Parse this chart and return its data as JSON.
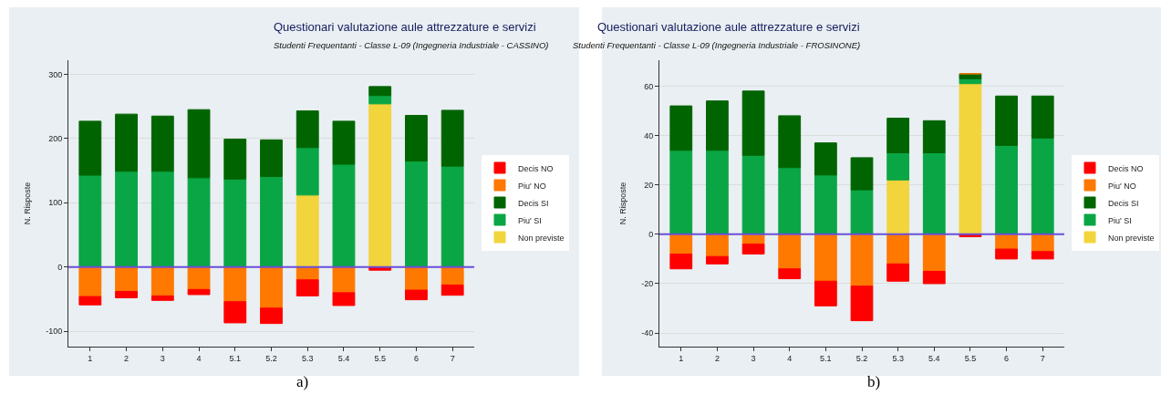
{
  "chart_data": [
    {
      "type": "bar",
      "title": "Questionari valutazione aule attrezzature e servizi",
      "subtitle": "Studenti Frequentanti - Classe L-09 (Ingegneria Industriale - CASSINO)",
      "ylabel": "N. Risposte",
      "annotations": [
        "a)"
      ],
      "categories": [
        "1",
        "2",
        "3",
        "4",
        "5.1",
        "5.2",
        "5.3",
        "5.4",
        "5.5",
        "6",
        "7"
      ],
      "stacked": true,
      "ylim": [
        -124,
        322
      ],
      "yticks": [
        -100,
        0,
        100,
        200,
        300
      ],
      "grid": "y",
      "legend": "right",
      "ref_lines": [
        {
          "axis": "y",
          "value": 0,
          "color": "#6a4fd8"
        }
      ],
      "series": [
        {
          "name": "Non previste",
          "color": "#f2d43c",
          "values": [
            null,
            null,
            null,
            null,
            null,
            null,
            112,
            null,
            254,
            null,
            null
          ]
        },
        {
          "name": "Piu' SI",
          "color": "#0aa645",
          "values": [
            143,
            149,
            149,
            139,
            137,
            141,
            74,
            160,
            13,
            165,
            157
          ]
        },
        {
          "name": "Decis SI",
          "color": "#006400",
          "values": [
            84,
            89,
            86,
            106,
            62,
            57,
            57,
            67,
            14,
            71,
            87
          ]
        },
        {
          "name": "Piu' NO",
          "color": "#ff7800",
          "values": [
            -46,
            -38,
            -45,
            -35,
            -54,
            -64,
            -20,
            -40,
            null,
            -36,
            -28
          ]
        },
        {
          "name": "Decis NO",
          "color": "#ff0000",
          "values": [
            -13,
            -10,
            -7,
            -8,
            -33,
            -24,
            -25,
            -20,
            -5,
            -15,
            -16
          ]
        }
      ]
    },
    {
      "type": "bar",
      "title": "Questionari valutazione aule attrezzature e servizi",
      "subtitle": "Studenti Frequentanti - Classe L-09 (Ingegneria Industriale - FROSINONE)",
      "ylabel": "N. Risposte",
      "annotations": [
        "b)"
      ],
      "categories": [
        "1",
        "2",
        "3",
        "4",
        "5.1",
        "5.2",
        "5.3",
        "5.4",
        "5.5",
        "6",
        "7"
      ],
      "stacked": true,
      "ylim": [
        -45.5,
        70.5
      ],
      "yticks": [
        -40,
        -20,
        0,
        20,
        40,
        60
      ],
      "grid": "y",
      "legend": "right",
      "ref_lines": [
        {
          "axis": "y",
          "value": 0,
          "color": "#6a4fd8"
        }
      ],
      "series": [
        {
          "name": "Non previste",
          "color": "#f2d43c",
          "values": [
            null,
            null,
            null,
            null,
            null,
            null,
            22,
            null,
            61,
            null,
            null
          ]
        },
        {
          "name": "Piu' SI",
          "color": "#0aa645",
          "values": [
            34,
            34,
            32,
            27,
            24,
            18,
            11,
            33,
            2,
            36,
            39
          ]
        },
        {
          "name": "Decis SI",
          "color": "#006400",
          "values": [
            18,
            20,
            26,
            21,
            13,
            13,
            14,
            13,
            2,
            20,
            17
          ]
        },
        {
          "name": "Piu' NO",
          "color": "#ff7800",
          "values": [
            -8,
            -9,
            -4,
            -14,
            -19,
            -21,
            -12,
            -15,
            0,
            -6,
            -7
          ]
        },
        {
          "name": "Decis NO",
          "color": "#ff0000",
          "values": [
            -6,
            -3,
            -4,
            -4,
            -10,
            -14,
            -7,
            -5,
            -1,
            -4,
            -3
          ]
        }
      ]
    }
  ]
}
